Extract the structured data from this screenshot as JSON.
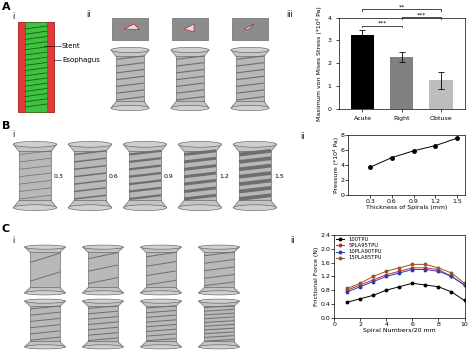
{
  "chart_data": [
    {
      "type": "bar",
      "categories": [
        "Acute",
        "Right",
        "Obtuse"
      ],
      "values": [
        3.25,
        2.25,
        1.25
      ],
      "errors": [
        0.2,
        0.22,
        0.38
      ],
      "colors": [
        "#000000",
        "#808080",
        "#bdbdbd"
      ],
      "y_label": "Maximum von Mises Stress (*10⁴ Pa)",
      "ylim": [
        0,
        4
      ],
      "yticks": [
        0,
        1,
        2,
        3,
        4
      ],
      "annotations": [
        {
          "from": "Acute",
          "to": "Right",
          "text": "***"
        },
        {
          "from": "Acute",
          "to": "Obtuse",
          "text": "**"
        },
        {
          "from": "Right",
          "to": "Obtuse",
          "text": "***"
        }
      ]
    },
    {
      "type": "line",
      "x": [
        0.3,
        0.6,
        0.9,
        1.2,
        1.5
      ],
      "values": [
        3.7,
        5.0,
        5.9,
        6.6,
        7.6
      ],
      "color": "#000000",
      "marker": "o",
      "x_label": "Thickness of Spirals (mm)",
      "y_label": "Pressure (*10⁴ Pa)",
      "xlim": [
        0,
        1.6
      ],
      "xticks": [
        0.3,
        0.6,
        0.9,
        1.2,
        1.5
      ],
      "ylim": [
        0,
        8
      ],
      "yticks": [
        0,
        2,
        4,
        6,
        8
      ]
    },
    {
      "type": "line",
      "x": [
        1,
        2,
        3,
        4,
        5,
        6,
        7,
        8,
        9,
        10
      ],
      "series": [
        {
          "name": "100TPU",
          "color": "#000000",
          "values": [
            0.45,
            0.55,
            0.65,
            0.8,
            0.9,
            1.0,
            0.95,
            0.9,
            0.75,
            0.5
          ]
        },
        {
          "name": "5PLA95TPU",
          "color": "#d62728",
          "values": [
            0.8,
            0.95,
            1.1,
            1.25,
            1.35,
            1.45,
            1.45,
            1.4,
            1.2,
            0.95
          ]
        },
        {
          "name": "10PLA90TPU",
          "color": "#1f3fbf",
          "values": [
            0.75,
            0.9,
            1.05,
            1.2,
            1.3,
            1.4,
            1.4,
            1.35,
            1.2,
            0.95
          ]
        },
        {
          "name": "15PLA85TPU",
          "color": "#8b5a2b",
          "values": [
            0.85,
            1.0,
            1.2,
            1.35,
            1.45,
            1.55,
            1.55,
            1.45,
            1.3,
            1.0
          ]
        }
      ],
      "marker": "o",
      "legend": "upper left",
      "x_label": "Spiral Numbers/20 mm",
      "y_label": "Frictional Force (N)",
      "xlim": [
        0,
        10
      ],
      "xticks": [
        0,
        2,
        4,
        6,
        8,
        10
      ],
      "ylim": [
        0,
        2.4
      ],
      "yticks": [
        0.0,
        0.4,
        0.8,
        1.2,
        1.6,
        2.0,
        2.4
      ]
    }
  ],
  "diagram": {
    "panels": [
      {
        "label": "A",
        "parts": [
          "i",
          "ii",
          "iii"
        ]
      },
      {
        "label": "B",
        "parts": [
          "i",
          "ii"
        ]
      },
      {
        "label": "C",
        "parts": [
          "i",
          "ii"
        ]
      }
    ],
    "callouts": [
      "Stent",
      "Esophagus"
    ],
    "thickness_labels": [
      0.3,
      0.6,
      0.9,
      1.2,
      1.5
    ]
  }
}
